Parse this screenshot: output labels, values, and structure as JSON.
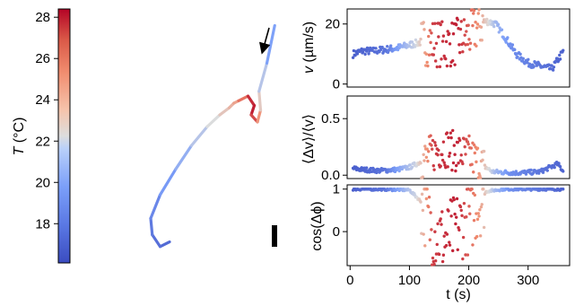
{
  "colorbar": {
    "label": "T (°C)",
    "label_var": "T",
    "label_unit": " (°C)",
    "range": [
      16.1,
      28.4
    ],
    "ticks": [
      "18",
      "20",
      "22",
      "24",
      "26",
      "28"
    ],
    "tick_values": [
      18,
      20,
      22,
      24,
      26,
      28
    ],
    "colormap": "coolwarm",
    "colors": {
      "cold": "#3b4cc0",
      "mid": "#dddddd",
      "hot": "#b40426"
    }
  },
  "chart_data": [
    {
      "type": "line",
      "name": "trajectory",
      "x": [
        0.28,
        0.22,
        0.17,
        0.16,
        0.22,
        0.32,
        0.42,
        0.52,
        0.6,
        0.66,
        0.69,
        0.72,
        0.78,
        0.82,
        0.8,
        0.84,
        0.86,
        0.85,
        0.9,
        0.95
      ],
      "y": [
        0.04,
        0.02,
        0.07,
        0.14,
        0.24,
        0.35,
        0.45,
        0.53,
        0.58,
        0.61,
        0.63,
        0.64,
        0.66,
        0.62,
        0.58,
        0.55,
        0.6,
        0.68,
        0.8,
        0.96
      ],
      "color_value": [
        17.2,
        17.3,
        17.6,
        18.0,
        18.6,
        19.4,
        20.4,
        21.6,
        22.8,
        23.6,
        24.2,
        24.8,
        27.0,
        28.0,
        27.6,
        26.0,
        24.0,
        22.0,
        20.0,
        18.5
      ],
      "annotation": "direction-arrow",
      "scale_bar": true
    },
    {
      "type": "scatter",
      "name": "speed",
      "ylabel_var": "v",
      "ylabel_unit": " (µm/s)",
      "xlim": [
        -5,
        370
      ],
      "ylim": [
        -1,
        25
      ],
      "yticks": [
        "0",
        "20"
      ],
      "ytick_values": [
        0,
        20
      ],
      "t": [
        5,
        20,
        40,
        60,
        80,
        100,
        120,
        140,
        160,
        180,
        200,
        215,
        230,
        245,
        260,
        280,
        300,
        320,
        340,
        350,
        360
      ],
      "values": [
        10,
        11,
        11,
        11.5,
        12,
        13,
        14,
        14,
        13,
        14,
        16,
        19,
        21,
        20,
        16,
        10,
        7,
        6,
        5,
        8,
        11
      ]
    },
    {
      "type": "scatter",
      "name": "speed-fluctuation",
      "ylabel": "⟨Δv⟩/⟨v⟩",
      "xlim": [
        -5,
        370
      ],
      "ylim": [
        -0.03,
        0.7
      ],
      "yticks": [
        "0.0",
        "0.5"
      ],
      "ytick_values": [
        0,
        0.5
      ],
      "t": [
        5,
        20,
        50,
        80,
        100,
        120,
        140,
        160,
        180,
        200,
        220,
        240,
        280,
        320,
        350,
        360
      ],
      "values": [
        0.06,
        0.05,
        0.04,
        0.05,
        0.07,
        0.12,
        0.2,
        0.25,
        0.2,
        0.18,
        0.1,
        0.03,
        0.02,
        0.03,
        0.1,
        0.03
      ]
    },
    {
      "type": "scatter",
      "name": "orientation-correlation",
      "ylabel": "cos(Δϕ)",
      "xlabel": "t (s)",
      "xlim": [
        -5,
        370
      ],
      "ylim": [
        -0.8,
        1.1
      ],
      "xticks": [
        "0",
        "100",
        "200",
        "300"
      ],
      "xtick_values": [
        0,
        100,
        200,
        300
      ],
      "yticks": [
        "0",
        "1"
      ],
      "ytick_values": [
        0,
        1
      ],
      "t": [
        5,
        50,
        100,
        120,
        140,
        160,
        180,
        200,
        230,
        260,
        300,
        360
      ],
      "values": [
        1,
        1,
        0.98,
        0.7,
        0.0,
        -0.2,
        0.1,
        0.3,
        0.95,
        1,
        1,
        1
      ]
    }
  ]
}
